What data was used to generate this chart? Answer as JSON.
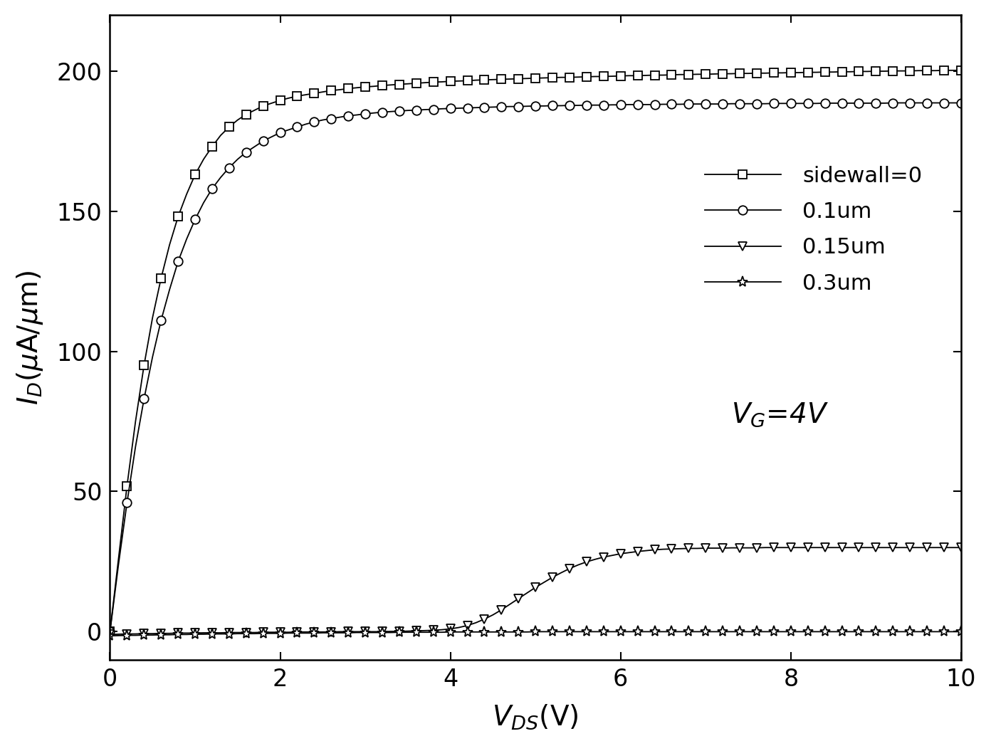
{
  "title": "",
  "xlabel": "V_{DS}(V)",
  "ylabel": "I_{D}(\\u03bcA/\\u03bcm)",
  "xlim": [
    0,
    10
  ],
  "ylim": [
    -10,
    220
  ],
  "xticks": [
    0,
    2,
    4,
    6,
    8,
    10
  ],
  "yticks": [
    0,
    50,
    100,
    150,
    200
  ],
  "legend_labels": [
    "sidewall=0",
    "0.1um",
    "0.15um",
    "0.3um"
  ],
  "line_color": "#000000",
  "background_color": "#ffffff",
  "series": {
    "sidewall0": {
      "vds": [
        0.0,
        0.1,
        0.2,
        0.3,
        0.4,
        0.5,
        0.6,
        0.7,
        0.8,
        0.9,
        1.0,
        1.1,
        1.2,
        1.3,
        1.4,
        1.5,
        1.6,
        1.7,
        1.8,
        1.9,
        2.0,
        2.1,
        2.2,
        2.3,
        2.4,
        2.5,
        2.6,
        2.7,
        2.8,
        2.9,
        3.0,
        3.1,
        3.2,
        3.3,
        3.4,
        3.5,
        3.6,
        3.7,
        3.8,
        3.9,
        4.0,
        4.1,
        4.2,
        4.3,
        4.4,
        4.5,
        4.6,
        4.7,
        4.8,
        4.9,
        5.0,
        5.1,
        5.2,
        5.3,
        5.4,
        5.5,
        5.6,
        5.7,
        5.8,
        5.9,
        6.0,
        6.1,
        6.2,
        6.3,
        6.4,
        6.5,
        6.6,
        6.7,
        6.8,
        6.9,
        7.0,
        7.1,
        7.2,
        7.3,
        7.4,
        7.5,
        7.6,
        7.7,
        7.8,
        7.9,
        8.0,
        8.1,
        8.2,
        8.3,
        8.4,
        8.5,
        8.6,
        8.7,
        8.8,
        8.9,
        9.0,
        9.1,
        9.2,
        9.3,
        9.4,
        9.5,
        9.6,
        9.7,
        9.8,
        9.9,
        10.0
      ],
      "id": [
        0.0,
        26.0,
        52.0,
        75.0,
        95.0,
        112.0,
        126.0,
        138.0,
        148.0,
        156.0,
        163.0,
        168.5,
        173.0,
        177.0,
        180.0,
        182.5,
        184.5,
        186.0,
        187.5,
        188.5,
        189.5,
        190.3,
        191.0,
        191.5,
        192.0,
        192.5,
        193.0,
        193.3,
        193.7,
        194.0,
        194.3,
        194.5,
        194.8,
        195.0,
        195.2,
        195.4,
        195.6,
        195.8,
        196.0,
        196.1,
        196.3,
        196.4,
        196.5,
        196.7,
        196.8,
        196.9,
        197.0,
        197.1,
        197.2,
        197.3,
        197.4,
        197.5,
        197.6,
        197.7,
        197.7,
        197.8,
        197.9,
        198.0,
        198.0,
        198.1,
        198.2,
        198.3,
        198.3,
        198.4,
        198.5,
        198.5,
        198.6,
        198.7,
        198.7,
        198.8,
        198.8,
        198.9,
        199.0,
        199.0,
        199.1,
        199.1,
        199.2,
        199.2,
        199.3,
        199.3,
        199.4,
        199.4,
        199.5,
        199.5,
        199.6,
        199.6,
        199.7,
        199.7,
        199.8,
        199.8,
        199.9,
        199.9,
        200.0,
        200.0,
        200.0,
        200.1,
        200.1,
        200.1,
        200.2,
        200.2,
        200.2
      ]
    },
    "s01um": {
      "vds": [
        0.0,
        0.1,
        0.2,
        0.3,
        0.4,
        0.5,
        0.6,
        0.7,
        0.8,
        0.9,
        1.0,
        1.1,
        1.2,
        1.3,
        1.4,
        1.5,
        1.6,
        1.7,
        1.8,
        1.9,
        2.0,
        2.1,
        2.2,
        2.3,
        2.4,
        2.5,
        2.6,
        2.7,
        2.8,
        2.9,
        3.0,
        3.1,
        3.2,
        3.3,
        3.4,
        3.5,
        3.6,
        3.7,
        3.8,
        3.9,
        4.0,
        4.1,
        4.2,
        4.3,
        4.4,
        4.5,
        4.6,
        4.7,
        4.8,
        4.9,
        5.0,
        5.1,
        5.2,
        5.3,
        5.4,
        5.5,
        5.6,
        5.7,
        5.8,
        5.9,
        6.0,
        6.1,
        6.2,
        6.3,
        6.4,
        6.5,
        6.6,
        6.7,
        6.8,
        6.9,
        7.0,
        7.1,
        7.2,
        7.3,
        7.4,
        7.5,
        7.6,
        7.7,
        7.8,
        7.9,
        8.0,
        8.1,
        8.2,
        8.3,
        8.4,
        8.5,
        8.6,
        8.7,
        8.8,
        8.9,
        9.0,
        9.1,
        9.2,
        9.3,
        9.4,
        9.5,
        9.6,
        9.7,
        9.8,
        9.9,
        10.0
      ],
      "id": [
        0.0,
        24.0,
        46.0,
        66.0,
        83.0,
        98.0,
        111.0,
        122.0,
        132.0,
        140.0,
        147.0,
        153.0,
        158.0,
        162.0,
        165.5,
        168.5,
        171.0,
        173.0,
        175.0,
        176.5,
        178.0,
        179.0,
        180.0,
        181.0,
        181.8,
        182.5,
        183.0,
        183.5,
        184.0,
        184.3,
        184.7,
        185.0,
        185.3,
        185.5,
        185.7,
        185.9,
        186.0,
        186.2,
        186.3,
        186.5,
        186.6,
        186.7,
        186.8,
        186.9,
        187.0,
        187.1,
        187.2,
        187.3,
        187.3,
        187.4,
        187.5,
        187.5,
        187.6,
        187.6,
        187.7,
        187.7,
        187.8,
        187.8,
        187.8,
        187.9,
        187.9,
        188.0,
        188.0,
        188.0,
        188.0,
        188.1,
        188.1,
        188.1,
        188.2,
        188.2,
        188.2,
        188.2,
        188.2,
        188.3,
        188.3,
        188.3,
        188.3,
        188.3,
        188.4,
        188.4,
        188.4,
        188.4,
        188.4,
        188.4,
        188.5,
        188.5,
        188.5,
        188.5,
        188.5,
        188.5,
        188.5,
        188.5,
        188.6,
        188.6,
        188.6,
        188.6,
        188.6,
        188.6,
        188.6,
        188.6,
        188.6
      ]
    },
    "s015um": {
      "vds": [
        0.0,
        0.1,
        0.2,
        0.3,
        0.4,
        0.5,
        0.6,
        0.7,
        0.8,
        0.9,
        1.0,
        1.1,
        1.2,
        1.3,
        1.4,
        1.5,
        1.6,
        1.7,
        1.8,
        1.9,
        2.0,
        2.1,
        2.2,
        2.3,
        2.4,
        2.5,
        2.6,
        2.7,
        2.8,
        2.9,
        3.0,
        3.1,
        3.2,
        3.3,
        3.4,
        3.5,
        3.6,
        3.7,
        3.8,
        3.9,
        4.0,
        4.1,
        4.2,
        4.3,
        4.4,
        4.5,
        4.6,
        4.7,
        4.8,
        4.9,
        5.0,
        5.1,
        5.2,
        5.3,
        5.4,
        5.5,
        5.6,
        5.7,
        5.8,
        5.9,
        6.0,
        6.1,
        6.2,
        6.3,
        6.4,
        6.5,
        6.6,
        6.7,
        6.8,
        6.9,
        7.0,
        7.1,
        7.2,
        7.3,
        7.4,
        7.5,
        7.6,
        7.7,
        7.8,
        7.9,
        8.0,
        8.1,
        8.2,
        8.3,
        8.4,
        8.5,
        8.6,
        8.7,
        8.8,
        8.9,
        9.0,
        9.1,
        9.2,
        9.3,
        9.4,
        9.5,
        9.6,
        9.7,
        9.8,
        9.9,
        10.0
      ],
      "id": [
        -1.0,
        -0.9,
        -0.8,
        -0.8,
        -0.7,
        -0.7,
        -0.6,
        -0.6,
        -0.5,
        -0.5,
        -0.5,
        -0.4,
        -0.4,
        -0.4,
        -0.3,
        -0.3,
        -0.3,
        -0.3,
        -0.2,
        -0.2,
        -0.2,
        -0.2,
        -0.1,
        -0.1,
        -0.1,
        -0.1,
        -0.1,
        -0.0,
        -0.0,
        0.0,
        0.0,
        0.0,
        0.0,
        0.1,
        0.1,
        0.2,
        0.3,
        0.4,
        0.5,
        0.7,
        1.0,
        1.5,
        2.2,
        3.2,
        4.5,
        6.0,
        7.8,
        9.8,
        11.8,
        13.8,
        15.8,
        17.6,
        19.4,
        21.0,
        22.5,
        23.8,
        24.9,
        25.8,
        26.6,
        27.2,
        27.8,
        28.2,
        28.6,
        28.9,
        29.2,
        29.4,
        29.5,
        29.6,
        29.7,
        29.7,
        29.8,
        29.8,
        29.8,
        29.9,
        29.9,
        29.9,
        29.9,
        30.0,
        30.0,
        30.0,
        30.0,
        30.0,
        30.0,
        30.0,
        30.0,
        30.0,
        30.0,
        30.0,
        30.0,
        30.0,
        30.0,
        30.0,
        30.0,
        30.0,
        30.0,
        30.0,
        30.0,
        30.0,
        30.0,
        30.0,
        30.0
      ]
    },
    "s03um": {
      "vds": [
        0.0,
        0.1,
        0.2,
        0.3,
        0.4,
        0.5,
        0.6,
        0.7,
        0.8,
        0.9,
        1.0,
        1.1,
        1.2,
        1.3,
        1.4,
        1.5,
        1.6,
        1.7,
        1.8,
        1.9,
        2.0,
        2.1,
        2.2,
        2.3,
        2.4,
        2.5,
        2.6,
        2.7,
        2.8,
        2.9,
        3.0,
        3.1,
        3.2,
        3.3,
        3.4,
        3.5,
        3.6,
        3.7,
        3.8,
        3.9,
        4.0,
        4.1,
        4.2,
        4.3,
        4.4,
        4.5,
        4.6,
        4.7,
        4.8,
        4.9,
        5.0,
        5.1,
        5.2,
        5.3,
        5.4,
        5.5,
        5.6,
        5.7,
        5.8,
        5.9,
        6.0,
        6.1,
        6.2,
        6.3,
        6.4,
        6.5,
        6.6,
        6.7,
        6.8,
        6.9,
        7.0,
        7.1,
        7.2,
        7.3,
        7.4,
        7.5,
        7.6,
        7.7,
        7.8,
        7.9,
        8.0,
        8.1,
        8.2,
        8.3,
        8.4,
        8.5,
        8.6,
        8.7,
        8.8,
        8.9,
        9.0,
        9.1,
        9.2,
        9.3,
        9.4,
        9.5,
        9.6,
        9.7,
        9.8,
        9.9,
        10.0
      ],
      "id": [
        -1.5,
        -1.4,
        -1.3,
        -1.3,
        -1.2,
        -1.2,
        -1.1,
        -1.1,
        -1.0,
        -1.0,
        -0.9,
        -0.9,
        -0.8,
        -0.8,
        -0.8,
        -0.7,
        -0.7,
        -0.7,
        -0.6,
        -0.6,
        -0.6,
        -0.5,
        -0.5,
        -0.5,
        -0.5,
        -0.4,
        -0.4,
        -0.4,
        -0.4,
        -0.3,
        -0.3,
        -0.3,
        -0.3,
        -0.3,
        -0.2,
        -0.2,
        -0.2,
        -0.2,
        -0.2,
        -0.2,
        -0.1,
        -0.1,
        -0.1,
        -0.1,
        -0.1,
        -0.1,
        -0.1,
        -0.1,
        -0.1,
        -0.1,
        -0.0,
        -0.0,
        -0.0,
        -0.0,
        -0.0,
        0.0,
        0.0,
        0.0,
        0.0,
        0.0,
        0.0,
        0.0,
        0.0,
        0.0,
        0.0,
        0.0,
        0.0,
        0.0,
        0.0,
        0.0,
        0.0,
        0.0,
        0.0,
        0.0,
        0.0,
        0.0,
        0.0,
        0.0,
        0.0,
        0.0,
        0.0,
        0.0,
        0.0,
        0.0,
        0.0,
        0.0,
        0.0,
        0.0,
        0.0,
        0.0,
        0.0,
        0.0,
        0.0,
        0.0,
        0.0,
        0.0,
        0.0,
        0.0,
        0.0,
        0.0,
        0.0
      ]
    }
  }
}
